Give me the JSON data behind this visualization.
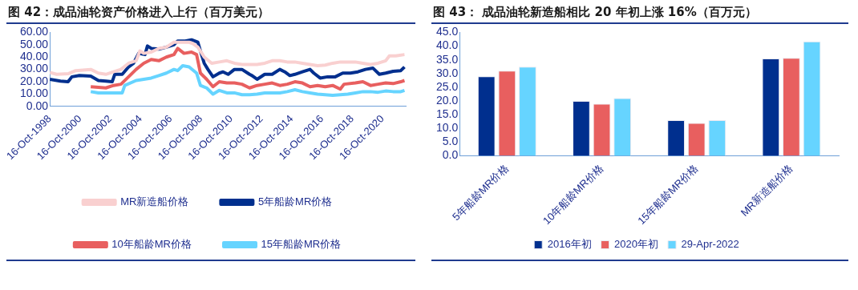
{
  "chart_data": [
    {
      "type": "line",
      "title": "图 42：成品油轮资产价格进入上行（百万美元）",
      "legend": "bottom",
      "grid": false,
      "marker": "none",
      "xlim": [
        "1998-10-16",
        "2022-05-01"
      ],
      "xticks": [
        {
          "value": "1998-10-16",
          "label": "16-Oct-1998"
        },
        {
          "value": "2000-10-16",
          "label": "16-Oct-2000"
        },
        {
          "value": "2002-10-16",
          "label": "16-Oct-2002"
        },
        {
          "value": "2004-10-16",
          "label": "16-Oct-2004"
        },
        {
          "value": "2006-10-16",
          "label": "16-Oct-2006"
        },
        {
          "value": "2008-10-16",
          "label": "16-Oct-2008"
        },
        {
          "value": "2010-10-16",
          "label": "16-Oct-2010"
        },
        {
          "value": "2012-10-16",
          "label": "16-Oct-2012"
        },
        {
          "value": "2014-10-16",
          "label": "16-Oct-2014"
        },
        {
          "value": "2016-10-16",
          "label": "16-Oct-2016"
        },
        {
          "value": "2018-10-16",
          "label": "16-Oct-2018"
        },
        {
          "value": "2020-10-16",
          "label": "16-Oct-2020"
        }
      ],
      "ylim": [
        0,
        60
      ],
      "yticks": [
        {
          "value": 0,
          "label": "0.00"
        },
        {
          "value": 10,
          "label": "10.00"
        },
        {
          "value": 20,
          "label": "20.00"
        },
        {
          "value": 30,
          "label": "30.00"
        },
        {
          "value": 40,
          "label": "40.00"
        },
        {
          "value": 50,
          "label": "50.00"
        },
        {
          "value": 60,
          "label": "60.00"
        }
      ],
      "series": [
        {
          "name": "MR新造船价格",
          "color": "#f9d0d0",
          "x": [
            "1998-10-16",
            "1999-04",
            "2000-01",
            "2000-07",
            "2001-01",
            "2001-07",
            "2002-01",
            "2002-07",
            "2003-01",
            "2003-07",
            "2004-01",
            "2004-07",
            "2004-10",
            "2005-01",
            "2005-07",
            "2006-01",
            "2006-07",
            "2007-01",
            "2007-07",
            "2008-01",
            "2008-04",
            "2008-08",
            "2009-01",
            "2009-07",
            "2010-01",
            "2010-07",
            "2011-01",
            "2011-07",
            "2012-01",
            "2012-07",
            "2013-01",
            "2013-07",
            "2014-01",
            "2014-07",
            "2015-01",
            "2015-07",
            "2016-01",
            "2016-07",
            "2017-01",
            "2017-07",
            "2018-01",
            "2018-07",
            "2019-01",
            "2019-07",
            "2020-01",
            "2020-07",
            "2021-01",
            "2021-04",
            "2021-09",
            "2022-04"
          ],
          "values": [
            27.5,
            26,
            26.5,
            29,
            29.5,
            30,
            27,
            26,
            28,
            30,
            35,
            37,
            45,
            43,
            44,
            47,
            48,
            52,
            52,
            52,
            51,
            48,
            40,
            35,
            36,
            37,
            35,
            34,
            34,
            34,
            35,
            37,
            37,
            36,
            36,
            35,
            34,
            33,
            33.5,
            35,
            36,
            36,
            36,
            35,
            34,
            35,
            37,
            41,
            41,
            42
          ]
        },
        {
          "name": "5年船龄MR价格",
          "color": "#002f8e",
          "x": [
            "1998-10-16",
            "1999-07",
            "2000-01",
            "2000-04",
            "2000-10",
            "2001-07",
            "2002-01",
            "2002-07",
            "2002-12",
            "2003-02",
            "2003-08",
            "2004-01",
            "2004-05",
            "2004-09",
            "2005-02",
            "2005-04",
            "2005-07",
            "2006-01",
            "2006-07",
            "2007-01",
            "2007-04",
            "2007-10",
            "2008-03",
            "2008-08",
            "2008-10",
            "2009-01",
            "2009-04",
            "2009-08",
            "2010-01",
            "2010-04",
            "2010-08",
            "2011-01",
            "2011-07",
            "2012-01",
            "2012-03",
            "2012-07",
            "2013-01",
            "2013-07",
            "2014-01",
            "2014-05",
            "2014-09",
            "2015-01",
            "2015-07",
            "2016-01",
            "2016-04",
            "2016-09",
            "2017-03",
            "2017-09",
            "2018-03",
            "2018-09",
            "2019-03",
            "2019-09",
            "2020-03",
            "2020-08",
            "2021-01",
            "2021-07",
            "2022-01",
            "2022-04"
          ],
          "values": [
            22,
            20.5,
            20,
            24,
            25,
            24.5,
            21,
            20.5,
            20,
            26,
            26,
            32,
            35,
            43,
            42,
            49,
            47,
            46.5,
            48,
            50,
            53,
            53,
            54,
            52,
            45,
            35,
            30,
            24,
            27,
            28,
            26,
            30,
            30,
            26,
            25,
            22,
            26,
            26,
            30,
            28,
            25,
            26,
            28,
            30,
            27,
            23,
            24,
            24,
            27,
            27,
            28,
            30,
            31,
            26,
            27,
            28.5,
            29,
            32
          ]
        },
        {
          "name": "10年船龄MR价格",
          "color": "#e85f5f",
          "x": [
            "2001-07",
            "2002-07",
            "2003-01",
            "2003-07",
            "2004-01",
            "2004-07",
            "2005-01",
            "2005-07",
            "2006-01",
            "2006-07",
            "2007-01",
            "2007-04",
            "2007-09",
            "2008-03",
            "2008-07",
            "2008-10",
            "2009-03",
            "2009-08",
            "2010-01",
            "2010-07",
            "2011-01",
            "2011-07",
            "2012-01",
            "2012-07",
            "2013-01",
            "2013-07",
            "2014-01",
            "2014-07",
            "2015-01",
            "2015-07",
            "2016-01",
            "2016-07",
            "2017-01",
            "2017-07",
            "2018-01",
            "2018-04",
            "2019-01",
            "2019-07",
            "2020-01",
            "2020-07",
            "2021-01",
            "2021-07",
            "2022-01",
            "2022-04"
          ],
          "values": [
            16,
            15,
            17,
            18,
            24,
            30,
            35,
            38,
            37,
            40,
            42,
            47,
            43,
            44,
            42,
            27,
            22,
            16,
            20,
            19,
            19,
            18,
            15,
            17,
            18,
            19,
            17,
            18,
            20,
            19,
            16,
            17,
            16,
            17,
            14,
            18,
            19,
            20,
            17,
            18,
            19,
            18.5,
            20,
            21
          ]
        },
        {
          "name": "15年船龄MR价格",
          "color": "#66d4ff",
          "x": [
            "2001-07",
            "2002-01",
            "2003-01",
            "2003-08",
            "2003-10",
            "2004-07",
            "2005-01",
            "2005-07",
            "2006-01",
            "2006-07",
            "2007-01",
            "2007-04",
            "2007-08",
            "2008-01",
            "2008-07",
            "2008-10",
            "2009-03",
            "2009-08",
            "2010-01",
            "2010-07",
            "2011-01",
            "2011-07",
            "2012-01",
            "2012-07",
            "2013-01",
            "2013-07",
            "2014-01",
            "2014-07",
            "2015-01",
            "2015-07",
            "2016-01",
            "2016-07",
            "2017-01",
            "2017-07",
            "2018-01",
            "2018-07",
            "2019-01",
            "2019-07",
            "2020-01",
            "2020-07",
            "2021-01",
            "2021-07",
            "2022-01",
            "2022-04"
          ],
          "values": [
            12,
            11,
            11,
            11,
            17,
            21,
            22,
            23,
            25,
            27,
            30,
            29,
            33,
            32,
            27,
            17,
            15,
            10,
            13,
            11,
            11,
            9.5,
            9.5,
            10,
            11,
            11,
            11,
            12,
            13.5,
            12,
            11,
            10,
            9.5,
            9,
            9.5,
            10,
            11,
            12,
            12,
            11.5,
            12.5,
            12,
            12,
            13
          ]
        }
      ]
    },
    {
      "type": "bar",
      "title": "图 43： 成品油轮新造船相比 20 年初上涨 16%（百万元）",
      "legend": "bottom",
      "grid": false,
      "categories": [
        "5年船龄MR价格",
        "10年船龄MR价格",
        "15年船龄MR价格",
        "MR新造船价格"
      ],
      "ylim": [
        0,
        45
      ],
      "yticks": [
        {
          "value": 0,
          "label": "0.0"
        },
        {
          "value": 5,
          "label": "5.0"
        },
        {
          "value": 10,
          "label": "10.0"
        },
        {
          "value": 15,
          "label": "15.0"
        },
        {
          "value": 20,
          "label": "20.0"
        },
        {
          "value": 25,
          "label": "25.0"
        },
        {
          "value": 30,
          "label": "30.0"
        },
        {
          "value": 35,
          "label": "35.0"
        },
        {
          "value": 40,
          "label": "40.0"
        },
        {
          "value": 45,
          "label": "45.0"
        }
      ],
      "series": [
        {
          "name": "2016年初",
          "color": "#002f8e",
          "values": [
            29,
            20,
            13,
            35.5
          ]
        },
        {
          "name": "2020年初",
          "color": "#e85f5f",
          "values": [
            31,
            19,
            12,
            35.7
          ]
        },
        {
          "name": "29-Apr-2022",
          "color": "#66d4ff",
          "values": [
            32.5,
            21,
            13,
            41.7
          ]
        }
      ]
    }
  ]
}
